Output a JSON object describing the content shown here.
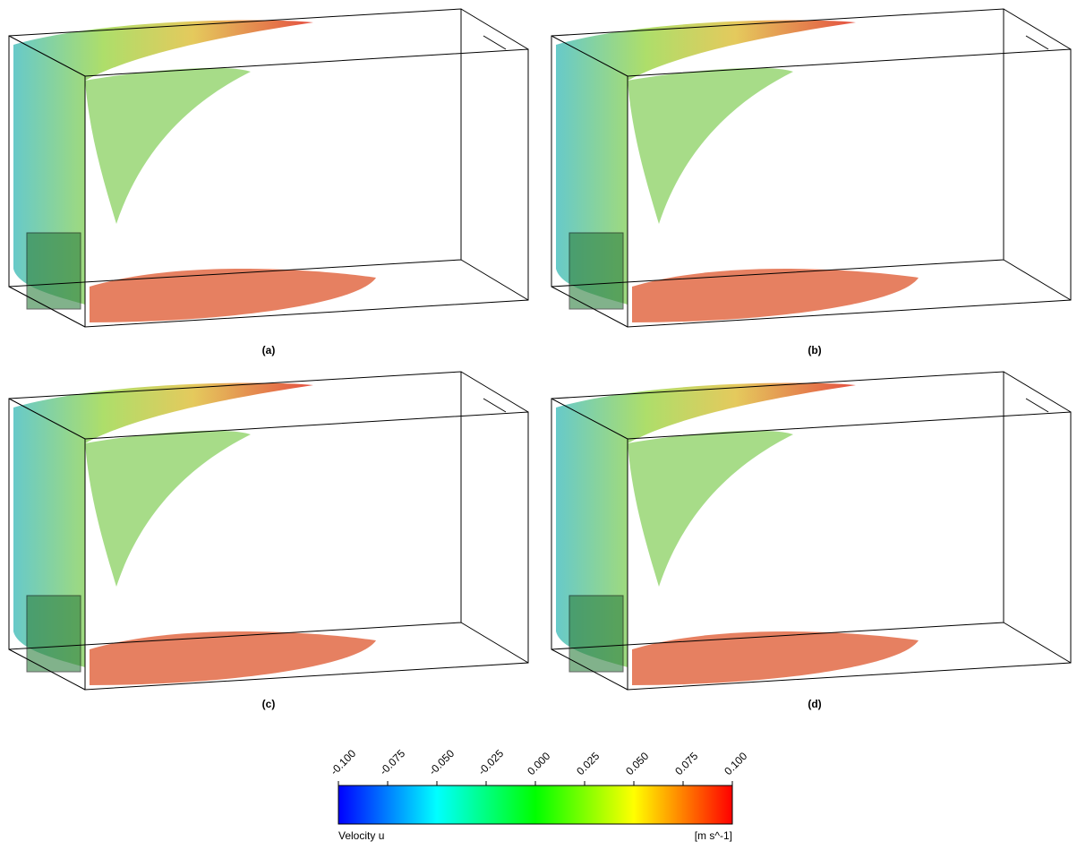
{
  "panels": [
    {
      "label": "(a)"
    },
    {
      "label": "(b)"
    },
    {
      "label": "(c)"
    },
    {
      "label": "(d)"
    }
  ],
  "colorbar": {
    "label": "Velocity u",
    "unit": "[m s^-1]",
    "range": [
      -0.1,
      0.1
    ],
    "ticks": [
      {
        "value": -0.1,
        "label": "-0.100"
      },
      {
        "value": -0.075,
        "label": "-0.075"
      },
      {
        "value": -0.05,
        "label": "-0.050"
      },
      {
        "value": -0.025,
        "label": "-0.025"
      },
      {
        "value": 0,
        "label": "0.000"
      },
      {
        "value": 0.025,
        "label": "0.025"
      },
      {
        "value": 0.05,
        "label": "0.050"
      },
      {
        "value": 0.075,
        "label": "0.075"
      },
      {
        "value": 0.1,
        "label": "0.100"
      }
    ]
  }
}
